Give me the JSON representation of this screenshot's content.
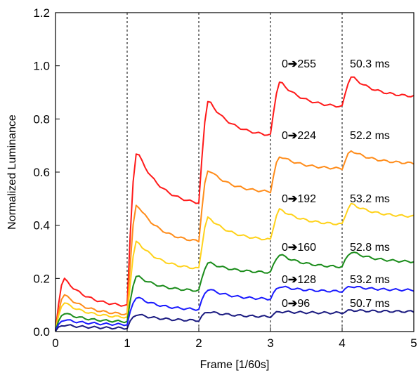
{
  "chart_data": {
    "type": "line",
    "xlabel": "Frame [1/60s]",
    "ylabel": "Normalized Luminance",
    "xlim": [
      0,
      5
    ],
    "ylim": [
      0,
      1.2
    ],
    "x_ticks": [
      "0",
      "1",
      "2",
      "3",
      "4",
      "5"
    ],
    "y_ticks": [
      "0.0",
      "0.2",
      "0.4",
      "0.6",
      "0.8",
      "1.0",
      "1.2"
    ],
    "frame_boundaries": [
      1,
      2,
      3,
      4
    ],
    "arrow_glyph": "➔",
    "series": [
      {
        "transition_from": "0",
        "transition_to": "255",
        "response_time": "50.3 ms",
        "color": "#ff1a1a",
        "peaks": [
          0.2,
          0.68,
          0.87,
          0.94,
          0.96
        ],
        "ends": [
          0.09,
          0.47,
          0.73,
          0.84,
          0.88
        ]
      },
      {
        "transition_from": "0",
        "transition_to": "224",
        "response_time": "52.2 ms",
        "color": "#ff8c1a",
        "peaks": [
          0.14,
          0.48,
          0.61,
          0.66,
          0.68
        ],
        "ends": [
          0.06,
          0.33,
          0.52,
          0.61,
          0.63
        ]
      },
      {
        "transition_from": "0",
        "transition_to": "192",
        "response_time": "53.2 ms",
        "color": "#ffd21a",
        "peaks": [
          0.11,
          0.34,
          0.43,
          0.46,
          0.48
        ],
        "ends": [
          0.05,
          0.23,
          0.34,
          0.4,
          0.43
        ]
      },
      {
        "transition_from": "0",
        "transition_to": "160",
        "response_time": "52.8 ms",
        "color": "#1a8c1a",
        "peaks": [
          0.07,
          0.21,
          0.26,
          0.29,
          0.3
        ],
        "ends": [
          0.035,
          0.15,
          0.22,
          0.24,
          0.26
        ]
      },
      {
        "transition_from": "0",
        "transition_to": "128",
        "response_time": "53.2 ms",
        "color": "#1a1aff",
        "peaks": [
          0.045,
          0.13,
          0.16,
          0.17,
          0.17
        ],
        "ends": [
          0.025,
          0.08,
          0.12,
          0.15,
          0.155
        ]
      },
      {
        "transition_from": "0",
        "transition_to": "96",
        "response_time": "50.7 ms",
        "color": "#1a1a80",
        "peaks": [
          0.025,
          0.065,
          0.075,
          0.075,
          0.08
        ],
        "ends": [
          0.012,
          0.04,
          0.055,
          0.07,
          0.075
        ]
      }
    ]
  }
}
